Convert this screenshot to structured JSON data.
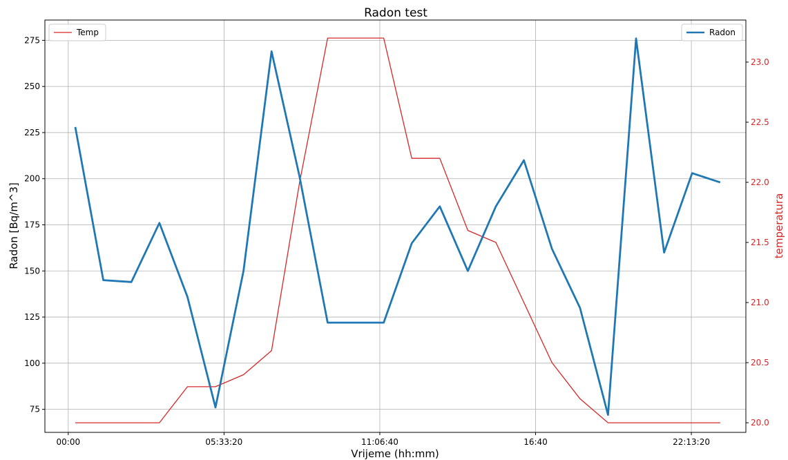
{
  "chart_data": {
    "type": "line",
    "title": "Radon test",
    "xlabel": "Vrijeme (hh:mm)",
    "ylabel_left": "Radon [Bq/m^3]",
    "ylabel_right": "temperatura",
    "x_tick_labels": [
      "00:00",
      "05:33:20",
      "11:06:40",
      "16:40",
      "22:13:20"
    ],
    "x_tick_seconds": [
      0,
      20000,
      40000,
      60000,
      80000
    ],
    "xlim": [
      -3000,
      87000
    ],
    "y_left_lim": [
      62.5,
      286
    ],
    "y_left_ticks": [
      "75",
      "100",
      "125",
      "150",
      "175",
      "200",
      "225",
      "250",
      "275"
    ],
    "y_right_lim": [
      19.92,
      23.35
    ],
    "y_right_ticks": [
      "20.0",
      "20.5",
      "21.0",
      "21.5",
      "22.0",
      "22.5",
      "23.0"
    ],
    "grid": true,
    "series": [
      {
        "name": "Radon",
        "axis": "left",
        "color": "#1f77b4",
        "x_seconds": [
          900,
          4500,
          8100,
          11700,
          15300,
          18900,
          22500,
          26100,
          29700,
          33300,
          36900,
          40500,
          44100,
          47700,
          51300,
          54900,
          58500,
          62100,
          65700,
          69300,
          72900,
          76500,
          80100,
          83700
        ],
        "values": [
          228,
          145,
          144,
          176,
          136,
          76,
          150,
          269,
          201,
          122,
          122,
          122,
          165,
          185,
          150,
          185,
          210,
          162,
          130,
          72,
          276,
          160,
          203,
          198
        ]
      },
      {
        "name": "Temp",
        "axis": "right",
        "color": "#d62728",
        "x_seconds": [
          900,
          4500,
          8100,
          11700,
          15300,
          18900,
          22500,
          26100,
          29700,
          33300,
          36900,
          40500,
          44100,
          47700,
          51300,
          54900,
          58500,
          62100,
          65700,
          69300,
          72900,
          76500,
          80100,
          83700
        ],
        "values": [
          20.0,
          20.0,
          20.0,
          20.0,
          20.3,
          20.3,
          20.4,
          20.6,
          22.0,
          23.2,
          23.2,
          23.2,
          22.2,
          22.2,
          21.6,
          21.5,
          21.0,
          20.5,
          20.2,
          20.0,
          20.0,
          20.0,
          20.0,
          20.0
        ]
      }
    ],
    "legend_temp": {
      "label": "Temp",
      "position": "top-left"
    },
    "legend_radon": {
      "label": "Radon",
      "position": "top-right"
    },
    "colors": {
      "radon": "#1f77b4",
      "temp": "#d62728",
      "grid": "#b0b0b0",
      "right_axis_text": "#d62728"
    }
  }
}
